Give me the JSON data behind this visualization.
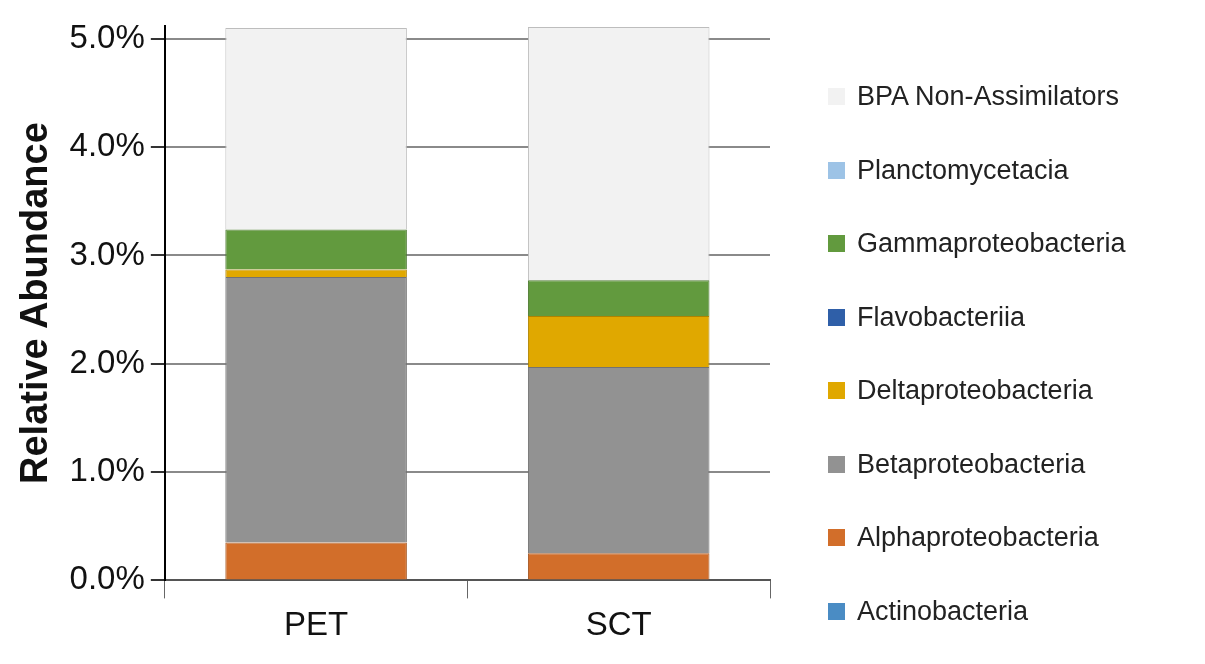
{
  "chart_data": {
    "type": "bar",
    "stacked": true,
    "ylabel": "Relative Abundance",
    "categories": [
      "PET",
      "SCT"
    ],
    "ylim": [
      0,
      5.12
    ],
    "yticks": [
      {
        "value": 0,
        "label": "0.0%"
      },
      {
        "value": 1,
        "label": "1.0%"
      },
      {
        "value": 2,
        "label": "2.0%"
      },
      {
        "value": 3,
        "label": "3.0%"
      },
      {
        "value": 4,
        "label": "4.0%"
      },
      {
        "value": 5,
        "label": "5.0%"
      }
    ],
    "grid": "y",
    "legend": "right",
    "series": [
      {
        "name": "Actinobacteria",
        "color": "#4a8cc4",
        "values": [
          0,
          0
        ]
      },
      {
        "name": "Alphaproteobacteria",
        "color": "#d26e2a",
        "values": [
          0.35,
          0.25
        ]
      },
      {
        "name": "Betaproteobacteria",
        "color": "#929292",
        "values": [
          2.45,
          1.72
        ]
      },
      {
        "name": "Deltaproteobacteria",
        "color": "#e0a800",
        "values": [
          0.07,
          0.47
        ]
      },
      {
        "name": "Flavobacteriia",
        "color": "#2f5fa8",
        "values": [
          0,
          0
        ]
      },
      {
        "name": "Gammaproteobacteria",
        "color": "#629a3e",
        "values": [
          0.37,
          0.33
        ]
      },
      {
        "name": "Planctomycetacia",
        "color": "#9dc3e6",
        "values": [
          0,
          0
        ]
      },
      {
        "name": "BPA Non-Assimilators",
        "color": "#f2f2f2",
        "values": [
          1.86,
          2.34
        ]
      }
    ]
  }
}
